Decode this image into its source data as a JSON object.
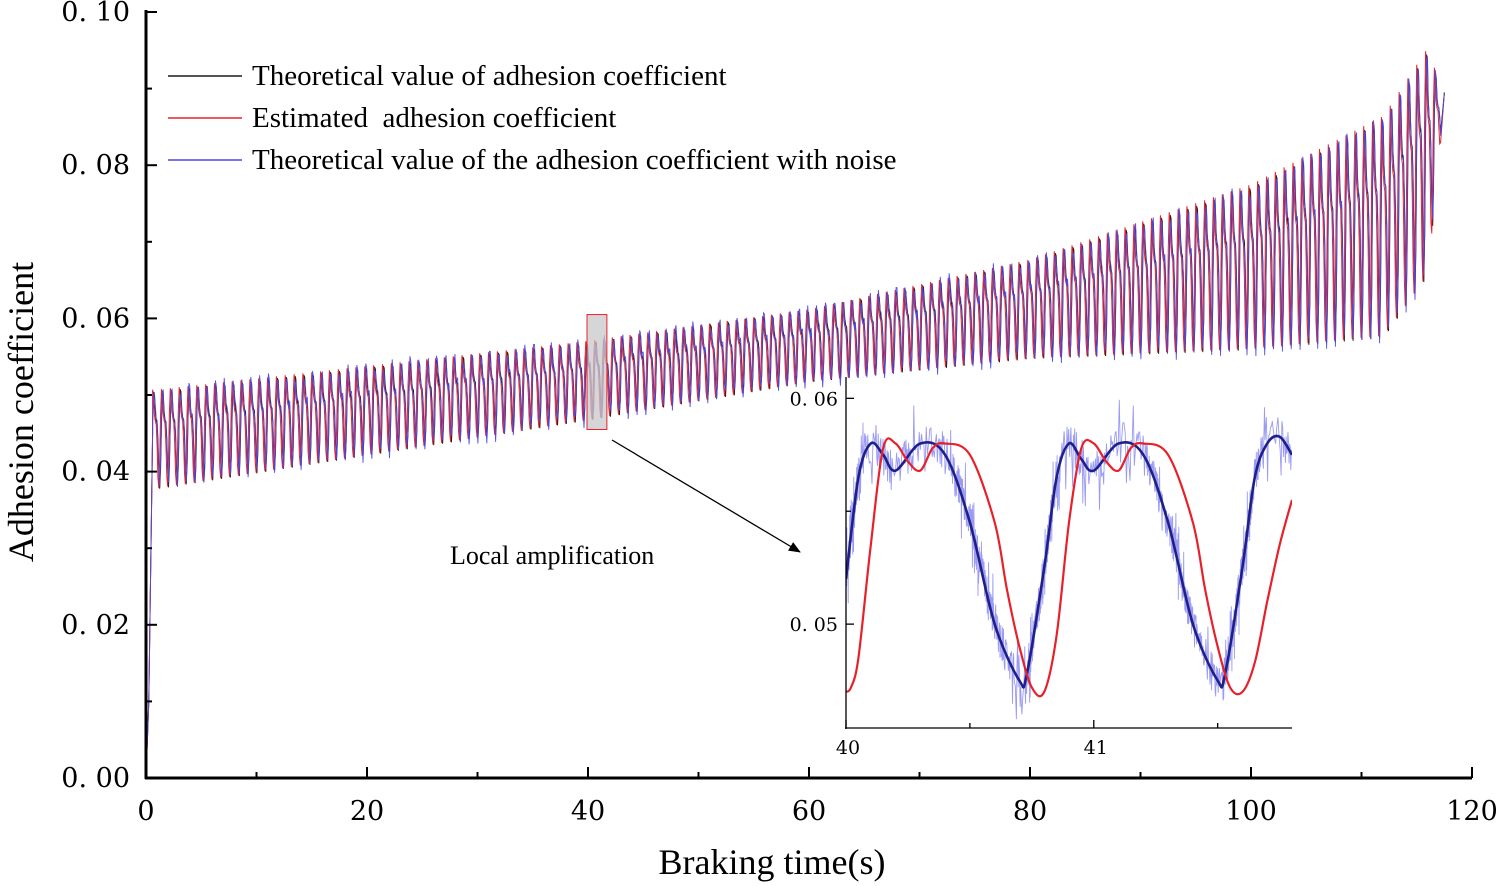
{
  "chart_data": [
    {
      "id": "main",
      "type": "line",
      "title": "",
      "xlabel": "Braking time(s)",
      "ylabel": "Adhesion coefficient",
      "xlim": [
        0,
        120
      ],
      "ylim": [
        0,
        0.1
      ],
      "x_ticks": [
        0,
        20,
        40,
        60,
        80,
        100,
        120
      ],
      "x_tick_labels": [
        "0",
        "20",
        "40",
        "60",
        "80",
        "100",
        "120"
      ],
      "y_ticks": [
        0,
        0.02,
        0.04,
        0.06,
        0.08,
        0.1
      ],
      "y_tick_labels": [
        "0. 00",
        "0. 02",
        "0. 04",
        "0. 06",
        "0. 08",
        "0. 10"
      ],
      "grid": false,
      "legend_position": "top-left",
      "series": [
        {
          "name": "Theoretical value of adhesion coefficient",
          "color": "#1a1a1a"
        },
        {
          "name": "Estimated  adhesion coefficient",
          "color": "#e8202a"
        },
        {
          "name": "Theoretical value of the adhesion coefficient with noise",
          "color": "#4a4ae6"
        }
      ],
      "oscillation": {
        "period_s": 0.8,
        "start_s": 0.6,
        "end_s": 117.2,
        "lower_envelope": {
          "x": [
            1,
            40,
            60,
            80,
            100,
            112,
            116,
            117.5
          ],
          "y": [
            0.0375,
            0.0465,
            0.0515,
            0.0545,
            0.0555,
            0.057,
            0.065,
            0.088
          ]
        },
        "upper_envelope": {
          "x": [
            1,
            40,
            60,
            80,
            100,
            112,
            116,
            117.5
          ],
          "y": [
            0.0525,
            0.0585,
            0.0625,
            0.0695,
            0.0805,
            0.0905,
            0.0995,
            0.089
          ]
        },
        "initial_rise": {
          "x": [
            0,
            0.25,
            0.6
          ],
          "y": [
            0,
            0.01,
            0.045
          ]
        }
      },
      "annotations": [
        {
          "text": "Local amplification",
          "x": 39.5,
          "y": 0.0292
        }
      ],
      "zoom_box": {
        "x": [
          40,
          41.8
        ],
        "y": [
          0.0455,
          0.0605
        ]
      }
    },
    {
      "id": "inset",
      "type": "line",
      "xlim": [
        40,
        41.8
      ],
      "ylim": [
        0.0454,
        0.0609
      ],
      "x_ticks": [
        40,
        41
      ],
      "x_tick_labels": [
        "40",
        "41"
      ],
      "y_ticks": [
        0.05,
        0.06
      ],
      "y_tick_labels": [
        "0. 05",
        "0. 06"
      ],
      "series": [
        {
          "name": "theoretical",
          "color": "#1f1f8a",
          "x": [
            40,
            40.05,
            40.1,
            40.15,
            40.2,
            40.3,
            40.4,
            40.5,
            40.6,
            40.7,
            40.73,
            40.8,
            40.85,
            40.9,
            40.95,
            41.0,
            41.1,
            41.2,
            41.3,
            41.4,
            41.5,
            41.53,
            41.6,
            41.65,
            41.7,
            41.75,
            41.8
          ],
          "y": [
            0.052,
            0.0565,
            0.058,
            0.0575,
            0.0568,
            0.058,
            0.0575,
            0.0545,
            0.05,
            0.0475,
            0.0478,
            0.0525,
            0.0565,
            0.058,
            0.0573,
            0.0568,
            0.058,
            0.0575,
            0.0545,
            0.05,
            0.0475,
            0.0478,
            0.0525,
            0.0565,
            0.058,
            0.0583,
            0.0575
          ]
        },
        {
          "name": "estimated",
          "color": "#e8202a",
          "x": [
            40,
            40.02,
            40.05,
            40.1,
            40.15,
            40.2,
            40.25,
            40.3,
            40.35,
            40.4,
            40.5,
            40.6,
            40.65,
            40.7,
            40.75,
            40.8,
            40.85,
            40.9,
            40.95,
            41.0,
            41.05,
            41.1,
            41.15,
            41.2,
            41.3,
            41.4,
            41.45,
            41.5,
            41.55,
            41.6,
            41.65,
            41.7,
            41.75,
            41.8
          ],
          "y": [
            0.047,
            0.0472,
            0.0485,
            0.0535,
            0.0578,
            0.058,
            0.0572,
            0.0568,
            0.0578,
            0.058,
            0.0575,
            0.0545,
            0.0515,
            0.049,
            0.0472,
            0.047,
            0.0495,
            0.0545,
            0.0578,
            0.058,
            0.0572,
            0.0568,
            0.0578,
            0.058,
            0.0575,
            0.0545,
            0.0515,
            0.049,
            0.0472,
            0.047,
            0.0483,
            0.051,
            0.0535,
            0.0555
          ]
        },
        {
          "name": "noisy",
          "color": "#7070ee",
          "noise_amplitude": 0.0009
        }
      ]
    }
  ],
  "legend": {
    "items": [
      {
        "label": "Theoretical value of adhesion coefficient",
        "color": "#1a1a1a"
      },
      {
        "label": "Estimated  adhesion coefficient",
        "color": "#e8202a"
      },
      {
        "label": "Theoretical value of the adhesion coefficient with noise",
        "color": "#4a4ae6"
      }
    ]
  },
  "annotation": {
    "text": "Local amplification"
  },
  "colors": {
    "axis": "#000000",
    "zoom_box_stroke": "#e8202a",
    "zoom_box_fill": "#c8c8c8",
    "arrow": "#000000"
  }
}
